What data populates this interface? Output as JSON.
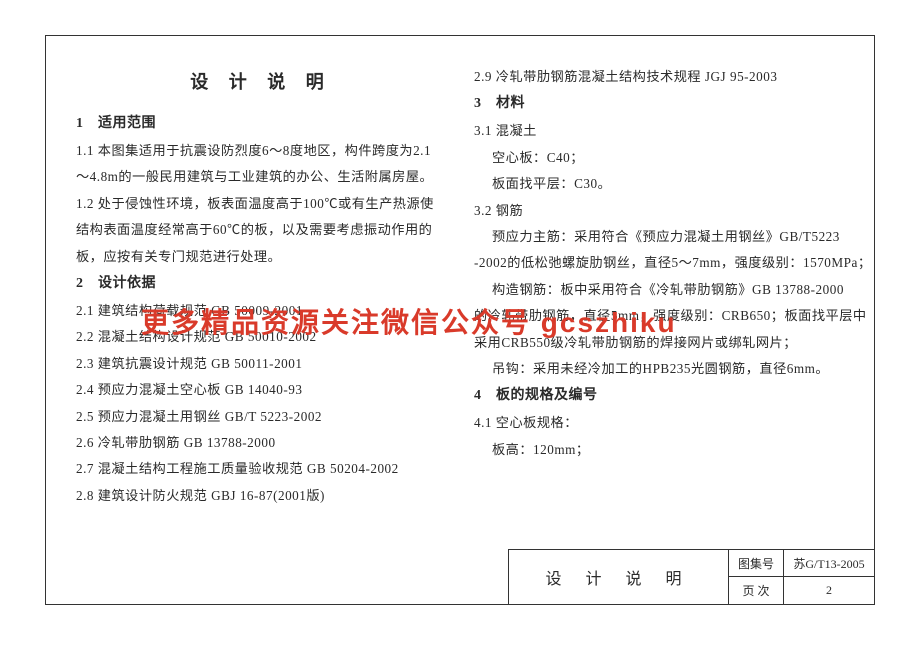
{
  "title": "设 计 说 明",
  "watermark": "更多精品资源关注微信公众号 gcszhiku",
  "left_col": [
    {
      "cls": "h1",
      "t": "1　适用范围"
    },
    {
      "cls": "line",
      "t": "1.1 本图集适用于抗震设防烈度6～8度地区，构件跨度为2.1"
    },
    {
      "cls": "line",
      "t": "～4.8m的一般民用建筑与工业建筑的办公、生活附属房屋。"
    },
    {
      "cls": "line",
      "t": "1.2 处于侵蚀性环境，板表面温度高于100℃或有生产热源使"
    },
    {
      "cls": "line",
      "t": "结构表面温度经常高于60℃的板，以及需要考虑振动作用的"
    },
    {
      "cls": "line",
      "t": "板，应按有关专门规范进行处理。"
    },
    {
      "cls": "h1",
      "t": "2　设计依据"
    },
    {
      "cls": "line",
      "t": "2.1 建筑结构荷载规范 GB 50009-2001"
    },
    {
      "cls": "line",
      "t": "2.2 混凝土结构设计规范 GB 50010-2002"
    },
    {
      "cls": "line",
      "t": "2.3 建筑抗震设计规范 GB 50011-2001"
    },
    {
      "cls": "line",
      "t": "2.4 预应力混凝土空心板 GB 14040-93"
    },
    {
      "cls": "line",
      "t": "2.5 预应力混凝土用钢丝 GB/T 5223-2002"
    },
    {
      "cls": "line",
      "t": "2.6 冷轧带肋钢筋 GB 13788-2000"
    },
    {
      "cls": "line",
      "t": "2.7 混凝土结构工程施工质量验收规范 GB 50204-2002"
    },
    {
      "cls": "line",
      "t": "2.8 建筑设计防火规范 GBJ 16-87(2001版)"
    }
  ],
  "right_col": [
    {
      "cls": "line",
      "t": "2.9 冷轧带肋钢筋混凝土结构技术规程 JGJ 95-2003"
    },
    {
      "cls": "h1",
      "t": "3　材料"
    },
    {
      "cls": "line",
      "t": "3.1 混凝土"
    },
    {
      "cls": "line indent1",
      "t": "空心板：C40；"
    },
    {
      "cls": "line indent1",
      "t": "板面找平层：C30。"
    },
    {
      "cls": "line",
      "t": "3.2 钢筋"
    },
    {
      "cls": "line indent1",
      "t": "预应力主筋：采用符合《预应力混凝土用钢丝》GB/T5223"
    },
    {
      "cls": "line",
      "t": "-2002的低松弛螺旋肋钢丝，直径5～7mm，强度级别：1570MPa；"
    },
    {
      "cls": "line indent1",
      "t": "构造钢筋：板中采用符合《冷轧带肋钢筋》GB 13788-2000"
    },
    {
      "cls": "line",
      "t": "的冷轧带肋钢筋，直径5mm，强度级别：CRB650；板面找平层中"
    },
    {
      "cls": "line",
      "t": "采用CRB550级冷轧带肋钢筋的焊接网片或绑轧网片；"
    },
    {
      "cls": "line indent1",
      "t": "吊钩：采用未经冷加工的HPB235光圆钢筋，直径6mm。"
    },
    {
      "cls": "h1",
      "t": "4　板的规格及编号"
    },
    {
      "cls": "line",
      "t": "4.1 空心板规格："
    },
    {
      "cls": "line indent1",
      "t": "板高：120mm；"
    }
  ],
  "footer": {
    "title": "设 计 说 明",
    "label_set": "图集号",
    "value_set": "苏G/T13-2005",
    "label_page": "页 次",
    "value_page": "2"
  }
}
